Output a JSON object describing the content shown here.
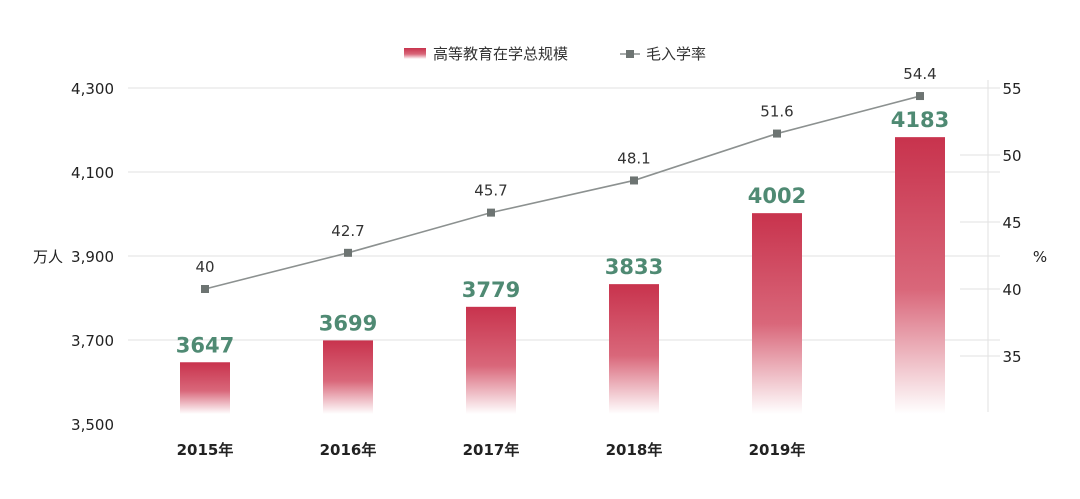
{
  "chart_data": {
    "type": "bar",
    "categories": [
      "2015年",
      "2016年",
      "2017年",
      "2018年",
      "2019年",
      ""
    ],
    "series": [
      {
        "name": "高等教育在学总规模",
        "type": "bar",
        "axis": "left",
        "values": [
          3647,
          3699,
          3779,
          3833,
          4002,
          4183
        ],
        "labels": [
          "3647",
          "3699",
          "3779",
          "3833",
          "4002",
          "4183"
        ],
        "color": "#c8334d"
      },
      {
        "name": "毛入学率",
        "type": "line",
        "axis": "right",
        "values": [
          40,
          42.7,
          45.7,
          48.1,
          51.6,
          54.4
        ],
        "labels": [
          "40",
          "42.7",
          "45.7",
          "48.1",
          "51.6",
          "54.4"
        ],
        "color": "#8c9190"
      }
    ],
    "y_left": {
      "label": "万人",
      "range": [
        3500,
        4300
      ],
      "ticks": [
        3500,
        3700,
        3900,
        4100,
        4300
      ],
      "tick_labels": [
        "3,500",
        "3,700",
        "3,900",
        "4,100",
        "4,300"
      ]
    },
    "y_right": {
      "label": "%",
      "range": [
        30,
        55
      ],
      "ticks": [
        35,
        40,
        45,
        50,
        55
      ],
      "tick_labels": [
        "35",
        "40",
        "45",
        "50",
        "55"
      ]
    },
    "grid": true,
    "legend_position": "top-center",
    "colors": {
      "bar_top": "#c8334d",
      "bar_bottom": "#ffffff",
      "bar_label": "#4f8a73",
      "line": "#8c9190",
      "marker": "#6d7472",
      "grid": "#e2e2e2",
      "axis_text": "#222222"
    }
  }
}
